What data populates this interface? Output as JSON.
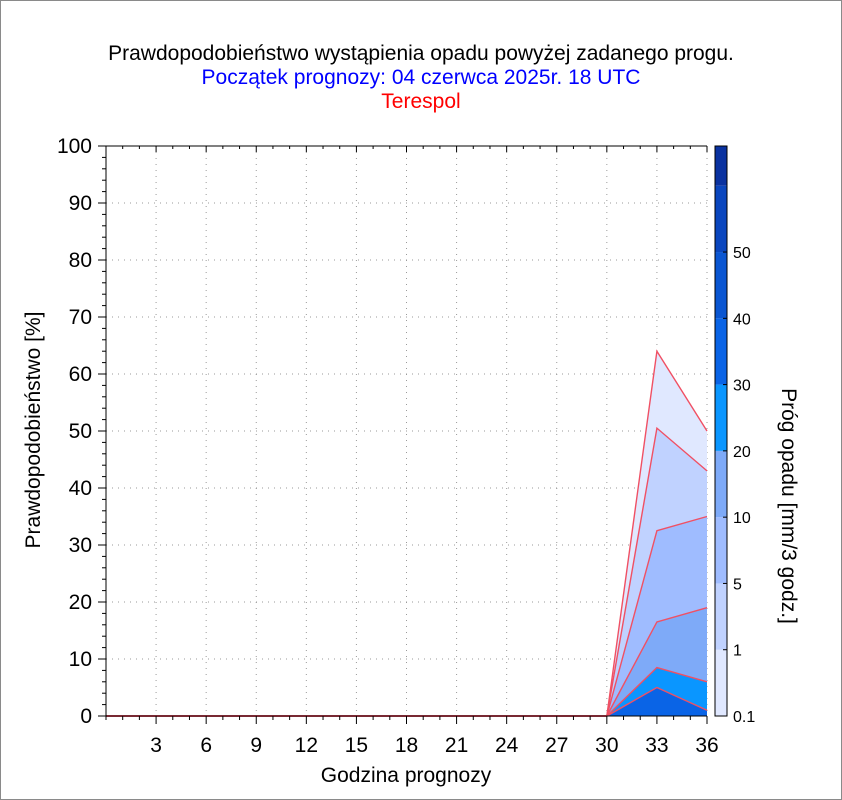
{
  "title": "Prawdopodobieństwo wystąpienia opadu powyżej zadanego progu.",
  "subtitle": "Początek prognozy: 04 czerwca 2025r. 18 UTC",
  "station": "Terespol",
  "chart_data": {
    "type": "area",
    "xlabel": "Godzina prognozy",
    "ylabel": "Prawdopodobieństwo [%]",
    "xlim": [
      0,
      36
    ],
    "ylim": [
      0,
      100
    ],
    "x_ticks": [
      3,
      6,
      9,
      12,
      15,
      18,
      21,
      24,
      27,
      30,
      33,
      36
    ],
    "y_ticks": [
      0,
      10,
      20,
      30,
      40,
      50,
      60,
      70,
      80,
      90,
      100
    ],
    "grid": true,
    "x": [
      0,
      3,
      6,
      9,
      12,
      15,
      18,
      21,
      24,
      27,
      30,
      33,
      36
    ],
    "series": [
      {
        "name": "0.1",
        "color": "#e0e8ff",
        "values": [
          0,
          0,
          0,
          0,
          0,
          0,
          0,
          0,
          0,
          0,
          0,
          64,
          50
        ]
      },
      {
        "name": "1",
        "color": "#c0d2ff",
        "values": [
          0,
          0,
          0,
          0,
          0,
          0,
          0,
          0,
          0,
          0,
          0,
          50.5,
          43
        ]
      },
      {
        "name": "5",
        "color": "#9fbcff",
        "values": [
          0,
          0,
          0,
          0,
          0,
          0,
          0,
          0,
          0,
          0,
          0,
          32.5,
          35
        ]
      },
      {
        "name": "10",
        "color": "#7eaaf8",
        "values": [
          0,
          0,
          0,
          0,
          0,
          0,
          0,
          0,
          0,
          0,
          0,
          16.5,
          19
        ]
      },
      {
        "name": "20",
        "color": "#0a96ff",
        "values": [
          0,
          0,
          0,
          0,
          0,
          0,
          0,
          0,
          0,
          0,
          0,
          8.5,
          6
        ]
      },
      {
        "name": "30",
        "color": "#0a64e6",
        "values": [
          0,
          0,
          0,
          0,
          0,
          0,
          0,
          0,
          0,
          0,
          0,
          5,
          1
        ]
      }
    ],
    "colorbar": {
      "label": "Próg opadu [mm/3 godz.]",
      "ticks": [
        "0.1",
        "1",
        "5",
        "10",
        "20",
        "30",
        "40",
        "50"
      ],
      "colors": [
        "#e0e8ff",
        "#c0d2ff",
        "#9fbcff",
        "#7eaaf8",
        "#0a96ff",
        "#0a64e6",
        "#0a56d2",
        "#0a46be",
        "#0a32a0"
      ]
    },
    "line_color": "#f05064"
  }
}
